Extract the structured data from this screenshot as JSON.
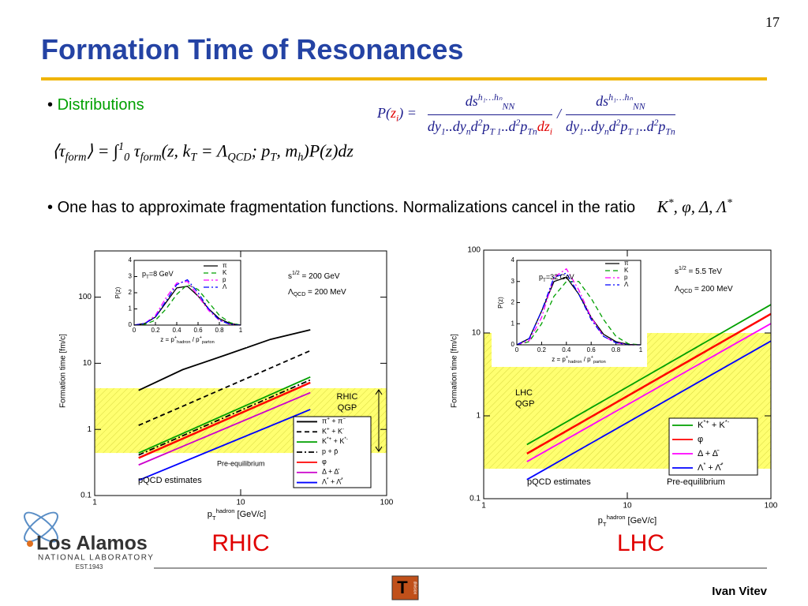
{
  "page_number": "17",
  "title": "Formation Time of Resonances",
  "bullets": [
    {
      "text": "Distributions"
    },
    {
      "text": "One has to approximate fragmentation functions. Normalizations cancel in the ratio",
      "math": [
        {
          "t": "K"
        },
        {
          "t": "*",
          "v": "sup"
        },
        {
          "t": ",  φ,  Δ,  Λ"
        },
        {
          "t": "*",
          "v": "sup"
        }
      ]
    }
  ],
  "formula_ratio": {
    "lhs": [
      {
        "t": "P"
      },
      {
        "t": "("
      },
      {
        "t": "z",
        "c": "#e00000"
      },
      {
        "t": "i",
        "v": "sub",
        "c": "#e00000"
      },
      {
        "t": ") ="
      }
    ],
    "sep": "/",
    "fractions": [
      {
        "num": [
          {
            "t": "ds"
          },
          {
            "t": "h₁…hₙ",
            "v": "sup"
          },
          {
            "t": "NN",
            "v": "sub"
          }
        ],
        "den": [
          {
            "t": "dy"
          },
          {
            "t": "1",
            "v": "sub"
          },
          {
            "t": "..dy"
          },
          {
            "t": "n",
            "v": "sub"
          },
          {
            "t": "d"
          },
          {
            "t": "2",
            "v": "sup"
          },
          {
            "t": "p"
          },
          {
            "t": "T 1",
            "v": "sub"
          },
          {
            "t": "..d"
          },
          {
            "t": "2",
            "v": "sup"
          },
          {
            "t": "p"
          },
          {
            "t": "Tn",
            "v": "sub"
          },
          {
            "t": "dz",
            "c": "#e00000"
          },
          {
            "t": "i",
            "v": "sub",
            "c": "#e00000"
          }
        ]
      },
      {
        "num": [
          {
            "t": "ds"
          },
          {
            "t": "h₁…hₙ",
            "v": "sup"
          },
          {
            "t": "NN",
            "v": "sub"
          }
        ],
        "den": [
          {
            "t": "dy"
          },
          {
            "t": "1",
            "v": "sub"
          },
          {
            "t": "..dy"
          },
          {
            "t": "n",
            "v": "sub"
          },
          {
            "t": "d"
          },
          {
            "t": "2",
            "v": "sup"
          },
          {
            "t": "p"
          },
          {
            "t": "T 1",
            "v": "sub"
          },
          {
            "t": "..d"
          },
          {
            "t": "2",
            "v": "sup"
          },
          {
            "t": "p"
          },
          {
            "t": "Tn",
            "v": "sub"
          }
        ]
      }
    ]
  },
  "formula_tau": [
    {
      "t": "⟨τ"
    },
    {
      "t": "form",
      "v": "sub"
    },
    {
      "t": "⟩ = ∫"
    },
    {
      "t": "1",
      "v": "sup"
    },
    {
      "t": "0",
      "v": "sub"
    },
    {
      "t": " τ"
    },
    {
      "t": "form",
      "v": "sub"
    },
    {
      "t": "(z, k"
    },
    {
      "t": "T",
      "v": "sub"
    },
    {
      "t": " = Λ"
    },
    {
      "t": "QCD",
      "v": "sub"
    },
    {
      "t": "; p"
    },
    {
      "t": "T",
      "v": "sub"
    },
    {
      "t": ", m"
    },
    {
      "t": "h",
      "v": "sub"
    },
    {
      "t": ")P(z)dz"
    }
  ],
  "chart_data": [
    {
      "type": "line",
      "title": "RHIC",
      "log_x": true,
      "log_y": true,
      "xlim": [
        1,
        100
      ],
      "ylim": [
        0.1,
        500
      ],
      "xticks": [
        1,
        10,
        100
      ],
      "yticks": [
        0.1,
        1,
        10,
        100
      ],
      "xlabel": [
        {
          "t": "p"
        },
        {
          "t": "T",
          "v": "sub"
        },
        {
          "t": "hadron",
          "v": "sup"
        },
        {
          "t": " [GeV/c]"
        }
      ],
      "ylabel": "Formation time [fm/c]",
      "band": [
        0.44,
        4.2
      ],
      "band_color": "#ffff70",
      "band_label": [
        "RHIC",
        "QGP"
      ],
      "band_arrow": true,
      "notes": [
        [
          {
            "t": "s"
          },
          {
            "t": "1/2",
            "v": "sup"
          },
          {
            "t": " = 200 GeV"
          }
        ],
        [
          {
            "t": "Λ"
          },
          {
            "t": "QCD",
            "v": "sub"
          },
          {
            "t": " = 200 MeV"
          }
        ]
      ],
      "region_labels": [
        "Pre-equilibrium",
        "pQCD estimates"
      ],
      "legend": "lower right",
      "series": [
        {
          "name": [
            {
              "t": "π"
            },
            {
              "t": "+",
              "v": "sup"
            },
            {
              "t": " + π"
            },
            {
              "t": "−",
              "v": "sup"
            }
          ],
          "color": "#000000",
          "style": "solid",
          "x": [
            2,
            4,
            8,
            16,
            30
          ],
          "values": [
            3.9,
            8,
            13.5,
            23,
            32
          ]
        },
        {
          "name": [
            {
              "t": "K"
            },
            {
              "t": "+",
              "v": "sup"
            },
            {
              "t": " + K"
            },
            {
              "t": "-",
              "v": "sup"
            }
          ],
          "color": "#000000",
          "style": "dashed",
          "x": [
            2,
            30
          ],
          "values": [
            1.15,
            15.5
          ]
        },
        {
          "name": [
            {
              "t": "K"
            },
            {
              "t": "*+",
              "v": "sup"
            },
            {
              "t": " + K"
            },
            {
              "t": "*-",
              "v": "sup"
            }
          ],
          "color": "#00a000",
          "style": "solid",
          "x": [
            2,
            30
          ],
          "values": [
            0.44,
            6.2
          ]
        },
        {
          "name": [
            {
              "t": "p + p̄"
            }
          ],
          "color": "#000000",
          "style": "dashdot",
          "x": [
            2,
            30
          ],
          "values": [
            0.41,
            5.6
          ]
        },
        {
          "name": [
            {
              "t": "φ"
            }
          ],
          "color": "#ff0000",
          "style": "solid",
          "x": [
            2,
            30
          ],
          "values": [
            0.37,
            5.1
          ]
        },
        {
          "name": [
            {
              "t": "Δ + Δ̄"
            }
          ],
          "color": "#cc00cc",
          "style": "solid",
          "x": [
            2,
            30
          ],
          "values": [
            0.29,
            3.6
          ]
        },
        {
          "name": [
            {
              "t": "Λ"
            },
            {
              "t": "*",
              "v": "sup"
            },
            {
              "t": " + Λ̄"
            },
            {
              "t": "*",
              "v": "sup"
            }
          ],
          "color": "#0000ff",
          "style": "solid",
          "x": [
            2,
            30
          ],
          "values": [
            0.17,
            2.0
          ]
        }
      ],
      "inset": {
        "label": [
          {
            "t": "p"
          },
          {
            "t": "T",
            "v": "sub"
          },
          {
            "t": "=8 GeV"
          }
        ],
        "ylabel": "P(z)",
        "xlabel": [
          {
            "t": "z = p"
          },
          {
            "t": "+",
            "v": "sup"
          },
          {
            "t": "hadron",
            "v": "sub"
          },
          {
            "t": " / p"
          },
          {
            "t": "+",
            "v": "sup"
          },
          {
            "t": "parton",
            "v": "sub"
          }
        ],
        "xlim": [
          0,
          1
        ],
        "ylim": [
          0,
          4
        ],
        "xticks": [
          0,
          0.2,
          0.4,
          0.6,
          0.8,
          1
        ],
        "yticks": [
          0,
          1,
          2,
          3,
          4
        ],
        "x": [
          0,
          0.1,
          0.2,
          0.3,
          0.4,
          0.5,
          0.6,
          0.7,
          0.8,
          0.9,
          1
        ],
        "series": [
          {
            "name": "π",
            "color": "#000000",
            "style": "solid",
            "values": [
              0,
              0.1,
              0.5,
              1.4,
              2.3,
              2.4,
              1.8,
              1.0,
              0.4,
              0.1,
              0
            ]
          },
          {
            "name": "K",
            "color": "#00a000",
            "style": "dashed",
            "values": [
              0,
              0.05,
              0.3,
              1.0,
              1.9,
              2.5,
              2.2,
              1.4,
              0.6,
              0.15,
              0
            ]
          },
          {
            "name": "p",
            "color": "#ff00ff",
            "style": "dashdot",
            "values": [
              0,
              0.1,
              0.6,
              1.7,
              2.6,
              2.7,
              1.8,
              0.9,
              0.3,
              0.05,
              0
            ]
          },
          {
            "name": "Λ",
            "color": "#0000ff",
            "style": "dashdot",
            "values": [
              0,
              0.1,
              0.5,
              1.5,
              2.5,
              2.8,
              2.0,
              1.0,
              0.3,
              0.05,
              0
            ]
          }
        ]
      }
    },
    {
      "type": "line",
      "title": "LHC",
      "log_x": true,
      "log_y": true,
      "xlim": [
        1,
        100
      ],
      "ylim": [
        0.1,
        100
      ],
      "xticks": [
        1,
        10,
        100
      ],
      "yticks": [
        0.1,
        1,
        10,
        100
      ],
      "xlabel": [
        {
          "t": "p"
        },
        {
          "t": "T",
          "v": "sub"
        },
        {
          "t": "hadron",
          "v": "sup"
        },
        {
          "t": " [GeV/c]"
        }
      ],
      "ylabel": "Formation time [fm/c]",
      "band": [
        0.23,
        10
      ],
      "band_color": "#ffff70",
      "band_label": [
        "LHC",
        "QGP"
      ],
      "band_arrow": false,
      "notes": [
        [
          {
            "t": "s"
          },
          {
            "t": "1/2",
            "v": "sup"
          },
          {
            "t": " = 5.5 TeV"
          }
        ],
        [
          {
            "t": "Λ"
          },
          {
            "t": "QCD",
            "v": "sub"
          },
          {
            "t": " = 200 MeV"
          }
        ]
      ],
      "region_labels": [
        "pQCD estimates",
        "Pre-equilibrium"
      ],
      "legend": "lower right",
      "series": [
        {
          "name": [
            {
              "t": "K"
            },
            {
              "t": "*+",
              "v": "sup"
            },
            {
              "t": " + K"
            },
            {
              "t": "*-",
              "v": "sup"
            }
          ],
          "color": "#00a000",
          "style": "solid",
          "x": [
            2,
            100
          ],
          "values": [
            0.45,
            22
          ]
        },
        {
          "name": [
            {
              "t": "φ"
            }
          ],
          "color": "#ff0000",
          "style": "solid",
          "x": [
            2,
            100
          ],
          "values": [
            0.35,
            17
          ]
        },
        {
          "name": [
            {
              "t": "Δ + Δ̄"
            }
          ],
          "color": "#ff00ff",
          "style": "solid",
          "x": [
            2,
            100
          ],
          "values": [
            0.28,
            13
          ]
        },
        {
          "name": [
            {
              "t": "Λ"
            },
            {
              "t": "*",
              "v": "sup"
            },
            {
              "t": " + Λ̄"
            },
            {
              "t": "*",
              "v": "sup"
            }
          ],
          "color": "#0000ff",
          "style": "solid",
          "x": [
            2,
            100
          ],
          "values": [
            0.17,
            8
          ]
        }
      ],
      "inset": {
        "label": [
          {
            "t": "p"
          },
          {
            "t": "T",
            "v": "sub"
          },
          {
            "t": "=32 GeV"
          }
        ],
        "ylabel": "P(z)",
        "xlabel": [
          {
            "t": "z = p"
          },
          {
            "t": "+",
            "v": "sup"
          },
          {
            "t": "hadron",
            "v": "sub"
          },
          {
            "t": " / p"
          },
          {
            "t": "+",
            "v": "sup"
          },
          {
            "t": "parton",
            "v": "sub"
          }
        ],
        "xlim": [
          0,
          1
        ],
        "ylim": [
          0,
          4
        ],
        "xticks": [
          0,
          0.2,
          0.4,
          0.6,
          0.8,
          1
        ],
        "yticks": [
          0,
          1,
          2,
          3,
          4
        ],
        "x": [
          0,
          0.1,
          0.2,
          0.3,
          0.4,
          0.5,
          0.6,
          0.7,
          0.8,
          0.9,
          1
        ],
        "series": [
          {
            "name": "π",
            "color": "#000000",
            "style": "solid",
            "values": [
              0,
              0.3,
              1.6,
              3.0,
              3.2,
              2.4,
              1.3,
              0.5,
              0.15,
              0.02,
              0
            ]
          },
          {
            "name": "K",
            "color": "#00a000",
            "style": "dashed",
            "values": [
              0,
              0.15,
              1.0,
              2.3,
              3.0,
              3.0,
              2.2,
              1.2,
              0.4,
              0.05,
              0
            ]
          },
          {
            "name": "p",
            "color": "#ff00ff",
            "style": "dashdot",
            "values": [
              0,
              0.2,
              1.3,
              3.2,
              3.6,
              2.6,
              1.3,
              0.4,
              0.1,
              0,
              0
            ]
          },
          {
            "name": "Λ",
            "color": "#0000ff",
            "style": "dashdot",
            "values": [
              0,
              0.3,
              1.6,
              3.2,
              3.4,
              2.4,
              1.2,
              0.4,
              0.1,
              0,
              0
            ]
          }
        ]
      }
    }
  ],
  "footer": {
    "org": "Los Alamos",
    "org_sub": "NATIONAL LABORATORY",
    "est": "EST.1943",
    "division_logo": "T",
    "division_text": "division",
    "author": "Ivan Vitev"
  }
}
